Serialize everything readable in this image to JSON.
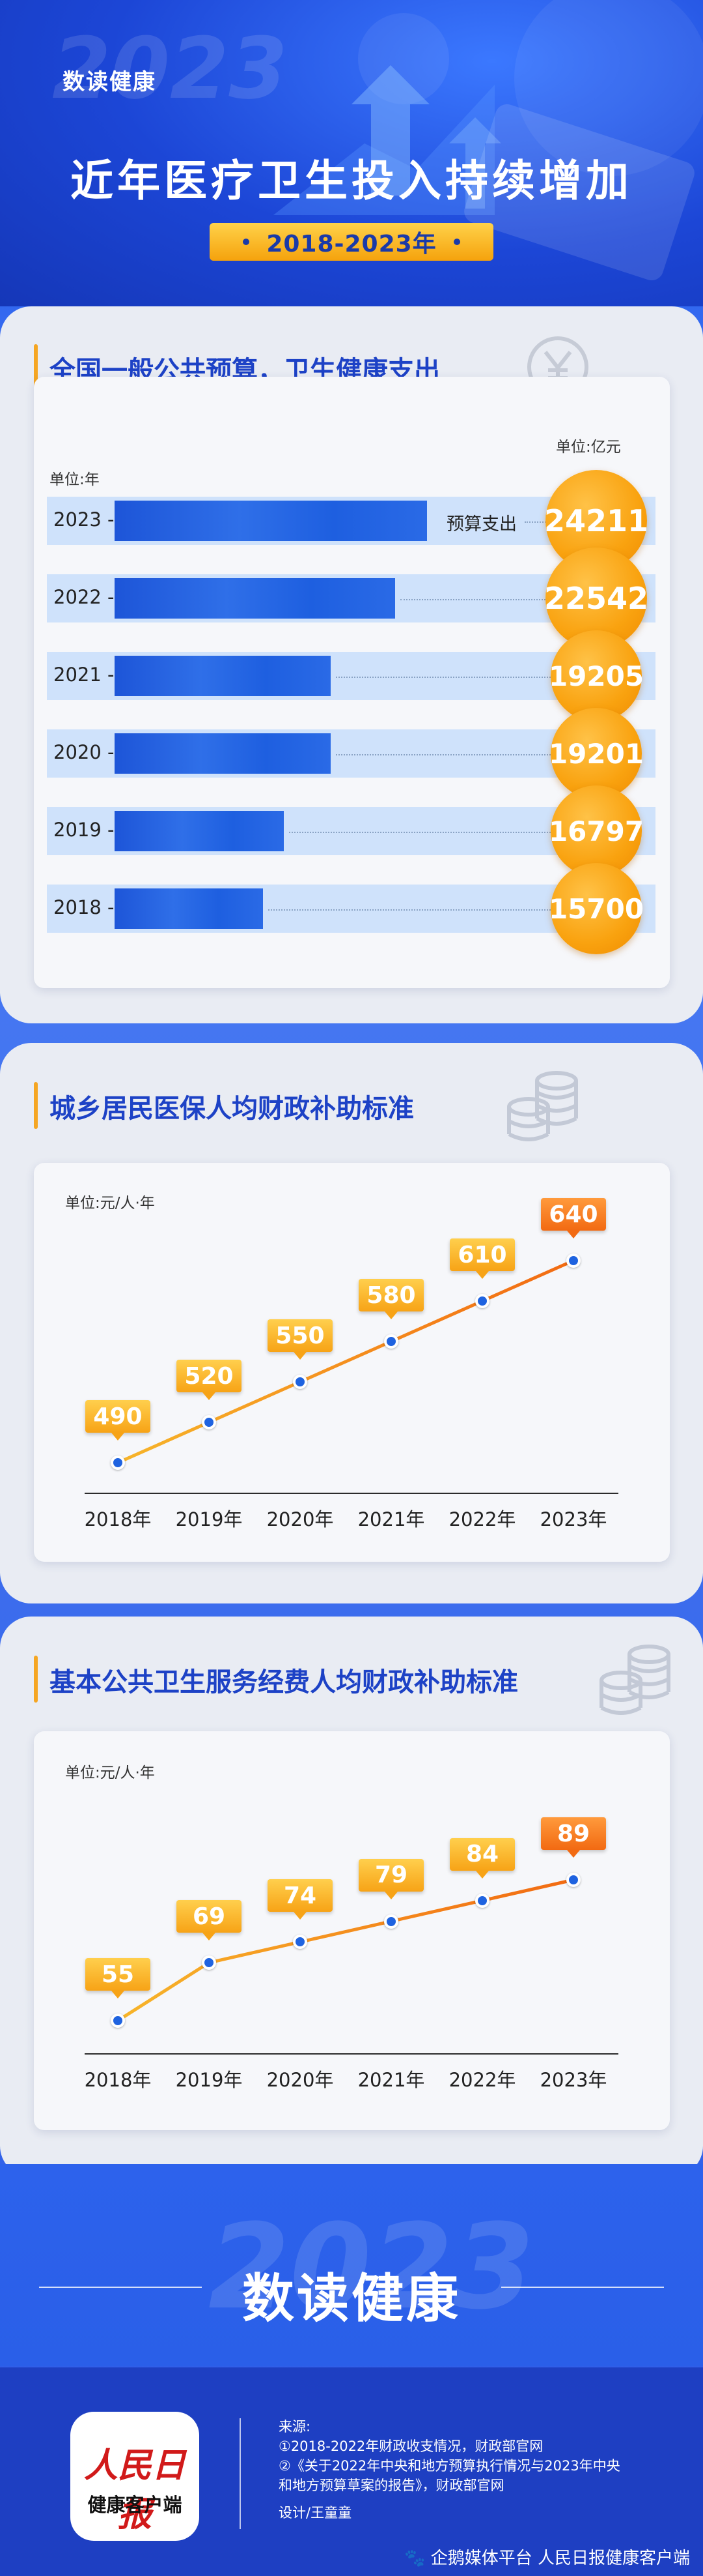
{
  "header": {
    "brand": "数读健康",
    "title": "近年医疗卫生投入持续增加",
    "year_range": "2018-2023年",
    "background_text": "2023"
  },
  "section1": {
    "title": "全国一般公共预算，卫生健康支出",
    "unit_left": "单位:年",
    "unit_right": "单位:亿元",
    "annotation": "预算支出",
    "icon": "yuan-icon"
  },
  "section2": {
    "title": "城乡居民医保人均财政补助标准",
    "unit": "单位:元/人·年",
    "icon": "coins-icon"
  },
  "section3": {
    "title": "基本公共卫生服务经费人均财政补助标准",
    "unit": "单位:元/人·年",
    "icon": "coins-icon"
  },
  "chart_data": [
    {
      "type": "bar",
      "orientation": "horizontal",
      "title": "全国一般公共预算，卫生健康支出",
      "categories": [
        "2023",
        "2022",
        "2021",
        "2020",
        "2019",
        "2018"
      ],
      "values": [
        24211,
        22542,
        19205,
        19201,
        16797,
        15700
      ],
      "data_labels": [
        "24211",
        "22542",
        "19205",
        "19201",
        "16797",
        "15700"
      ],
      "annotation": "预算支出",
      "xlabel": "单位:亿元",
      "ylabel": "单位:年"
    },
    {
      "type": "line",
      "title": "城乡居民医保人均财政补助标准",
      "categories": [
        "2018年",
        "2019年",
        "2020年",
        "2021年",
        "2022年",
        "2023年"
      ],
      "values": [
        490,
        520,
        550,
        580,
        610,
        640
      ],
      "data_labels": [
        "490",
        "520",
        "550",
        "580",
        "610",
        "640"
      ],
      "ylabel": "单位:元/人·年",
      "grid": false
    },
    {
      "type": "line",
      "title": "基本公共卫生服务经费人均财政补助标准",
      "categories": [
        "2018年",
        "2019年",
        "2020年",
        "2021年",
        "2022年",
        "2023年"
      ],
      "values": [
        55,
        69,
        74,
        79,
        84,
        89
      ],
      "data_labels": [
        "55",
        "69",
        "74",
        "79",
        "84",
        "89"
      ],
      "ylabel": "单位:元/人·年",
      "grid": false
    }
  ],
  "footer": {
    "brand": "数读健康",
    "background_text": "2023",
    "logo_main": "人民日报",
    "logo_sub": "健康客户端",
    "source_title": "来源:",
    "source_1": "①2018-2022年财政收支情况，财政部官网",
    "source_2a": "②《关于2022年中央和地方预算执行情况与2023年中央",
    "source_2b": "和地方预算草案的报告》，财政部官网",
    "designer": "设计/王童童",
    "platform": "企鹅媒体平台 人民日报健康客户端"
  },
  "colors": {
    "primary_blue": "#1d42c6",
    "accent_orange": "#f5a623",
    "bar_blue": "#2f6fe8",
    "row_bg": "#cfe2fb",
    "line_color": "#f5a623",
    "point_color": "#1f63e0"
  }
}
